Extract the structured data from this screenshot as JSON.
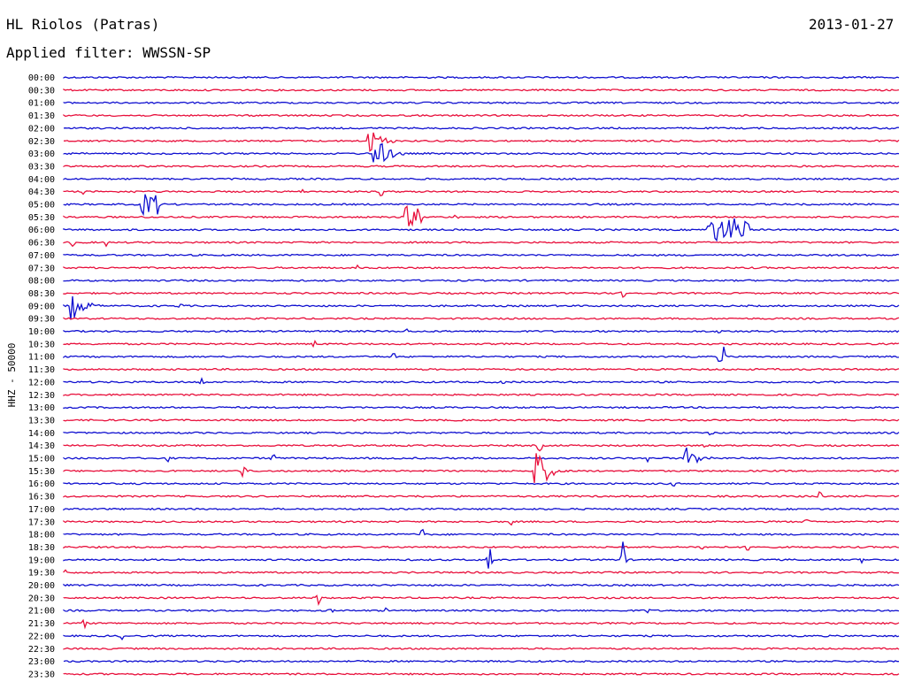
{
  "header": {
    "station": "HL Riolos (Patras)",
    "date": "2013-01-27",
    "filter": "Applied filter: WWSSN-SP"
  },
  "chart_data": {
    "type": "line",
    "subtype": "helicorder",
    "ylabel": "HHZ - 50000",
    "colors": [
      "#1010d0",
      "#e8103c"
    ],
    "trace_times": [
      "00:00",
      "00:30",
      "01:00",
      "01:30",
      "02:00",
      "02:30",
      "03:00",
      "03:30",
      "04:00",
      "04:30",
      "05:00",
      "05:30",
      "06:00",
      "06:30",
      "07:00",
      "07:30",
      "08:00",
      "08:30",
      "09:00",
      "09:30",
      "10:00",
      "10:30",
      "11:00",
      "11:30",
      "12:00",
      "12:30",
      "13:00",
      "13:30",
      "14:00",
      "14:30",
      "15:00",
      "15:30",
      "16:00",
      "16:30",
      "17:00",
      "17:30",
      "18:00",
      "18:30",
      "19:00",
      "19:30",
      "20:00",
      "20:30",
      "21:00",
      "21:30",
      "22:00",
      "22:30",
      "23:00",
      "23:30"
    ],
    "events": [
      {
        "row": 5,
        "x": 0.365,
        "type": "quake",
        "amp": 16
      },
      {
        "row": 6,
        "x": 0.372,
        "type": "quake",
        "amp": 22
      },
      {
        "row": 9,
        "x": 0.025,
        "type": "spike",
        "amp": 5
      },
      {
        "row": 9,
        "x": 0.085,
        "type": "spike",
        "amp": 5
      },
      {
        "row": 9,
        "x": 0.285,
        "type": "spike",
        "amp": 5
      },
      {
        "row": 9,
        "x": 0.38,
        "type": "spike",
        "amp": 7
      },
      {
        "row": 10,
        "x": 0.093,
        "type": "block",
        "width": 0.022,
        "amp": 12
      },
      {
        "row": 11,
        "x": 0.407,
        "type": "block",
        "width": 0.022,
        "amp": 12
      },
      {
        "row": 11,
        "x": 0.47,
        "type": "spike",
        "amp": 4
      },
      {
        "row": 12,
        "x": 0.77,
        "type": "block",
        "width": 0.05,
        "amp": 13
      },
      {
        "row": 13,
        "x": 0.01,
        "type": "spike",
        "amp": 7
      },
      {
        "row": 13,
        "x": 0.05,
        "type": "spike",
        "amp": 6
      },
      {
        "row": 15,
        "x": 0.35,
        "type": "spike",
        "amp": 5
      },
      {
        "row": 17,
        "x": 0.625,
        "type": "spike",
        "amp": 5
      },
      {
        "row": 17,
        "x": 0.67,
        "type": "spike",
        "amp": 6
      },
      {
        "row": 18,
        "x": 0.01,
        "type": "quake",
        "amp": 16
      },
      {
        "row": 18,
        "x": 0.14,
        "type": "spike",
        "amp": 6
      },
      {
        "row": 18,
        "x": 0.875,
        "type": "spike",
        "amp": 3
      },
      {
        "row": 20,
        "x": 0.41,
        "type": "spike",
        "amp": 4
      },
      {
        "row": 20,
        "x": 0.785,
        "type": "spike",
        "amp": 7
      },
      {
        "row": 21,
        "x": 0.3,
        "type": "spike",
        "amp": 5
      },
      {
        "row": 22,
        "x": 0.395,
        "type": "spike",
        "amp": 6
      },
      {
        "row": 22,
        "x": 0.785,
        "type": "spike",
        "amp": 7
      },
      {
        "row": 22,
        "x": 0.79,
        "type": "spike",
        "amp": 12
      },
      {
        "row": 24,
        "x": 0.165,
        "type": "spike",
        "amp": 6
      },
      {
        "row": 24,
        "x": 0.525,
        "type": "spike",
        "amp": 5
      },
      {
        "row": 28,
        "x": 0.775,
        "type": "spike",
        "amp": 4
      },
      {
        "row": 29,
        "x": 0.765,
        "type": "spike",
        "amp": 10
      },
      {
        "row": 29,
        "x": 0.57,
        "type": "spike",
        "amp": 10
      },
      {
        "row": 30,
        "x": 0.125,
        "type": "spike",
        "amp": 4
      },
      {
        "row": 30,
        "x": 0.25,
        "type": "spike",
        "amp": 12
      },
      {
        "row": 30,
        "x": 0.7,
        "type": "spike",
        "amp": 6
      },
      {
        "row": 30,
        "x": 0.745,
        "type": "quake",
        "amp": 14
      },
      {
        "row": 31,
        "x": 0.215,
        "type": "spike",
        "amp": 12
      },
      {
        "row": 31,
        "x": 0.565,
        "type": "quake",
        "amp": 26
      },
      {
        "row": 32,
        "x": 0.73,
        "type": "spike",
        "amp": 4
      },
      {
        "row": 33,
        "x": 0.43,
        "type": "spike",
        "amp": 4
      },
      {
        "row": 33,
        "x": 0.905,
        "type": "spike",
        "amp": 9
      },
      {
        "row": 35,
        "x": 0.535,
        "type": "spike",
        "amp": 5
      },
      {
        "row": 35,
        "x": 0.89,
        "type": "spike",
        "amp": 6
      },
      {
        "row": 36,
        "x": 0.43,
        "type": "spike",
        "amp": 12
      },
      {
        "row": 37,
        "x": 0.765,
        "type": "spike",
        "amp": 7
      },
      {
        "row": 37,
        "x": 0.82,
        "type": "spike",
        "amp": 8
      },
      {
        "row": 38,
        "x": 0.51,
        "type": "spike",
        "amp": 38
      },
      {
        "row": 38,
        "x": 0.67,
        "type": "spike",
        "amp": 38
      },
      {
        "row": 38,
        "x": 0.955,
        "type": "spike",
        "amp": 4
      },
      {
        "row": 39,
        "x": 0.0,
        "type": "spike",
        "amp": 7
      },
      {
        "row": 41,
        "x": 0.305,
        "type": "spike",
        "amp": 12
      },
      {
        "row": 42,
        "x": 0.32,
        "type": "spike",
        "amp": 4
      },
      {
        "row": 42,
        "x": 0.385,
        "type": "spike",
        "amp": 4
      },
      {
        "row": 42,
        "x": 0.7,
        "type": "spike",
        "amp": 5
      },
      {
        "row": 43,
        "x": 0.025,
        "type": "spike",
        "amp": 6
      },
      {
        "row": 44,
        "x": 0.07,
        "type": "spike",
        "amp": 4
      }
    ]
  }
}
